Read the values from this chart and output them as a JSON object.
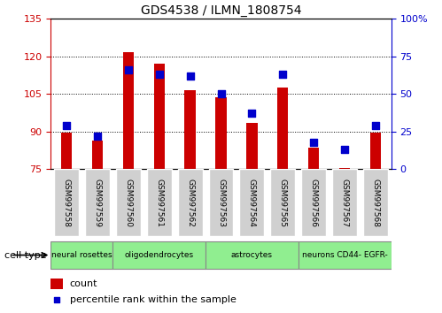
{
  "title": "GDS4538 / ILMN_1808754",
  "samples": [
    "GSM997558",
    "GSM997559",
    "GSM997560",
    "GSM997561",
    "GSM997562",
    "GSM997563",
    "GSM997564",
    "GSM997565",
    "GSM997566",
    "GSM997567",
    "GSM997568"
  ],
  "count_values": [
    89.5,
    86.5,
    121.5,
    117.0,
    106.5,
    103.5,
    93.5,
    107.5,
    83.5,
    75.5,
    89.5
  ],
  "percentile_values": [
    29,
    22,
    66,
    63,
    62,
    50,
    37,
    63,
    18,
    13,
    29
  ],
  "ylim_left": [
    75,
    135
  ],
  "ylim_right": [
    0,
    100
  ],
  "yticks_left": [
    75,
    90,
    105,
    120,
    135
  ],
  "yticks_right": [
    0,
    25,
    50,
    75,
    100
  ],
  "bar_color": "#CC0000",
  "dot_color": "#0000CC",
  "cell_groups": [
    {
      "label": "neural rosettes",
      "indices": [
        0,
        1
      ],
      "color": "#90EE90"
    },
    {
      "label": "oligodendrocytes",
      "indices": [
        2,
        3,
        4
      ],
      "color": "#90EE90"
    },
    {
      "label": "astrocytes",
      "indices": [
        5,
        6,
        7
      ],
      "color": "#90EE90"
    },
    {
      "label": "neurons CD44- EGFR-",
      "indices": [
        8,
        9,
        10
      ],
      "color": "#90EE90"
    }
  ],
  "cell_type_label": "cell type",
  "legend_count_label": "count",
  "legend_percentile_label": "percentile rank within the sample",
  "tick_color_left": "#CC0000",
  "tick_color_right": "#0000CC",
  "bar_width": 0.35,
  "dot_size": 40,
  "fig_bg": "#ffffff",
  "plot_bg": "#ffffff",
  "xtick_bg": "#d0d0d0"
}
